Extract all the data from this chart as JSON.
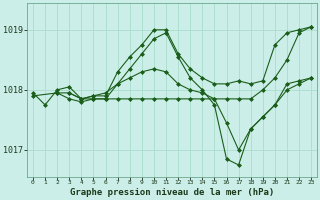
{
  "bg_color": "#cceee8",
  "grid_color": "#aaddcc",
  "line_color": "#1a5e1a",
  "marker_color": "#1a5e1a",
  "title": "Graphe pression niveau de la mer (hPa)",
  "title_fontsize": 6.5,
  "series": [
    {
      "x": [
        0,
        1,
        2,
        3,
        4,
        5,
        6,
        7,
        8,
        9,
        10,
        11,
        12,
        13,
        14,
        15,
        16,
        17,
        18,
        19,
        20,
        21,
        22,
        23
      ],
      "y": [
        1017.95,
        1017.75,
        1018.0,
        1018.05,
        1017.85,
        1017.9,
        1017.9,
        1018.3,
        1018.55,
        1018.75,
        1019.0,
        1019.0,
        1018.6,
        1018.35,
        1018.2,
        1018.1,
        1018.1,
        1018.15,
        1018.1,
        1018.15,
        1018.75,
        1018.95,
        1019.0,
        1019.05
      ]
    },
    {
      "x": [
        0,
        2,
        3,
        4,
        5,
        6,
        7,
        8,
        9,
        10,
        11,
        12,
        13,
        14,
        15,
        16,
        17,
        18,
        19,
        20,
        21,
        22,
        23
      ],
      "y": [
        1017.9,
        1017.95,
        1017.85,
        1017.8,
        1017.85,
        1017.85,
        1018.1,
        1018.35,
        1018.6,
        1018.85,
        1018.95,
        1018.55,
        1018.2,
        1018.0,
        1017.75,
        1016.85,
        1016.75,
        1017.35,
        1017.55,
        1017.75,
        1018.0,
        1018.1,
        1018.2
      ]
    },
    {
      "x": [
        2,
        3,
        4,
        5,
        6,
        7,
        8,
        9,
        10,
        11,
        12,
        13,
        14,
        15,
        16,
        17,
        18,
        19,
        20,
        21,
        22,
        23
      ],
      "y": [
        1017.95,
        1017.95,
        1017.85,
        1017.85,
        1017.85,
        1017.85,
        1017.85,
        1017.85,
        1017.85,
        1017.85,
        1017.85,
        1017.85,
        1017.85,
        1017.85,
        1017.85,
        1017.85,
        1017.85,
        1018.0,
        1018.2,
        1018.5,
        1018.95,
        1019.05
      ]
    },
    {
      "x": [
        3,
        4,
        5,
        6,
        7,
        8,
        9,
        10,
        11,
        12,
        13,
        14,
        15,
        16,
        17,
        18,
        19,
        20,
        21,
        22,
        23
      ],
      "y": [
        1017.95,
        1017.85,
        1017.9,
        1017.95,
        1018.1,
        1018.2,
        1018.3,
        1018.35,
        1018.3,
        1018.1,
        1018.0,
        1017.95,
        1017.85,
        1017.45,
        1017.0,
        1017.35,
        1017.55,
        1017.75,
        1018.1,
        1018.15,
        1018.2
      ]
    }
  ],
  "ylim": [
    1016.55,
    1019.45
  ],
  "yticks": [
    1017.0,
    1018.0,
    1019.0
  ],
  "xlim": [
    -0.5,
    23.5
  ],
  "xticks": [
    0,
    1,
    2,
    3,
    4,
    5,
    6,
    7,
    8,
    9,
    10,
    11,
    12,
    13,
    14,
    15,
    16,
    17,
    18,
    19,
    20,
    21,
    22,
    23
  ]
}
